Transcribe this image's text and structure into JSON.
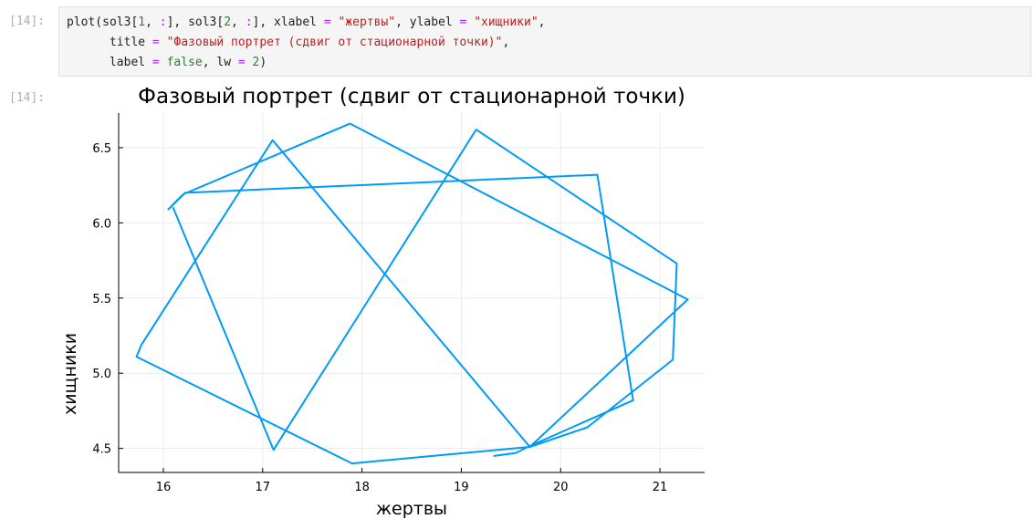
{
  "cell": {
    "in_prompt": "[14]:",
    "out_prompt": "[14]:",
    "code": {
      "l1_a": "plot(sol3[",
      "l1_n1": "1",
      "l1_b": ", ",
      "l1_c1": ":",
      "l1_d": "], sol3[",
      "l1_n2": "2",
      "l1_e": ", ",
      "l1_c2": ":",
      "l1_f": "], xlabel ",
      "l1_eq1": "=",
      "l1_g": " ",
      "l1_s1": "\"жертвы\"",
      "l1_h": ", ylabel ",
      "l1_eq2": "=",
      "l1_i": " ",
      "l1_s2": "\"хищники\"",
      "l1_j": ",",
      "l2_a": "      title ",
      "l2_eq": "=",
      "l2_b": " ",
      "l2_s": "\"Фазовый портрет (сдвиг от стационарной точки)\"",
      "l2_c": ",",
      "l3_a": "      label ",
      "l3_eq1": "=",
      "l3_b": " ",
      "l3_false": "false",
      "l3_c": ", lw ",
      "l3_eq2": "=",
      "l3_d": " ",
      "l3_n": "2",
      "l3_e": ")"
    }
  },
  "chart_data": {
    "type": "line",
    "title": "Фазовый портрет (сдвиг от стационарной точки)",
    "xlabel": "жертвы",
    "ylabel": "хищники",
    "xlim": [
      15.55,
      21.45
    ],
    "ylim": [
      4.34,
      6.73
    ],
    "xticks": [
      16,
      17,
      18,
      19,
      20,
      21
    ],
    "xtick_labels": [
      "16",
      "17",
      "18",
      "19",
      "20",
      "21"
    ],
    "yticks": [
      4.5,
      5.0,
      5.5,
      6.0,
      6.5
    ],
    "ytick_labels": [
      "4.5",
      "5.0",
      "5.5",
      "6.0",
      "6.5"
    ],
    "grid": true,
    "legend": false,
    "line_color": "#009af9",
    "series": [
      {
        "x": [
          19.33,
          19.55,
          19.67,
          20.73,
          20.37,
          16.22,
          16.05,
          16.2,
          17.88,
          21.28,
          19.69,
          17.9,
          15.73,
          15.78,
          17.1,
          19.69,
          20.27,
          21.13,
          21.17,
          19.15,
          17.11,
          16.1
        ],
        "y": [
          4.45,
          4.47,
          4.51,
          4.82,
          6.32,
          6.2,
          6.09,
          6.19,
          6.66,
          5.49,
          4.51,
          4.4,
          5.11,
          5.19,
          6.55,
          4.51,
          4.64,
          5.09,
          5.73,
          6.62,
          4.49,
          6.1
        ]
      }
    ]
  }
}
